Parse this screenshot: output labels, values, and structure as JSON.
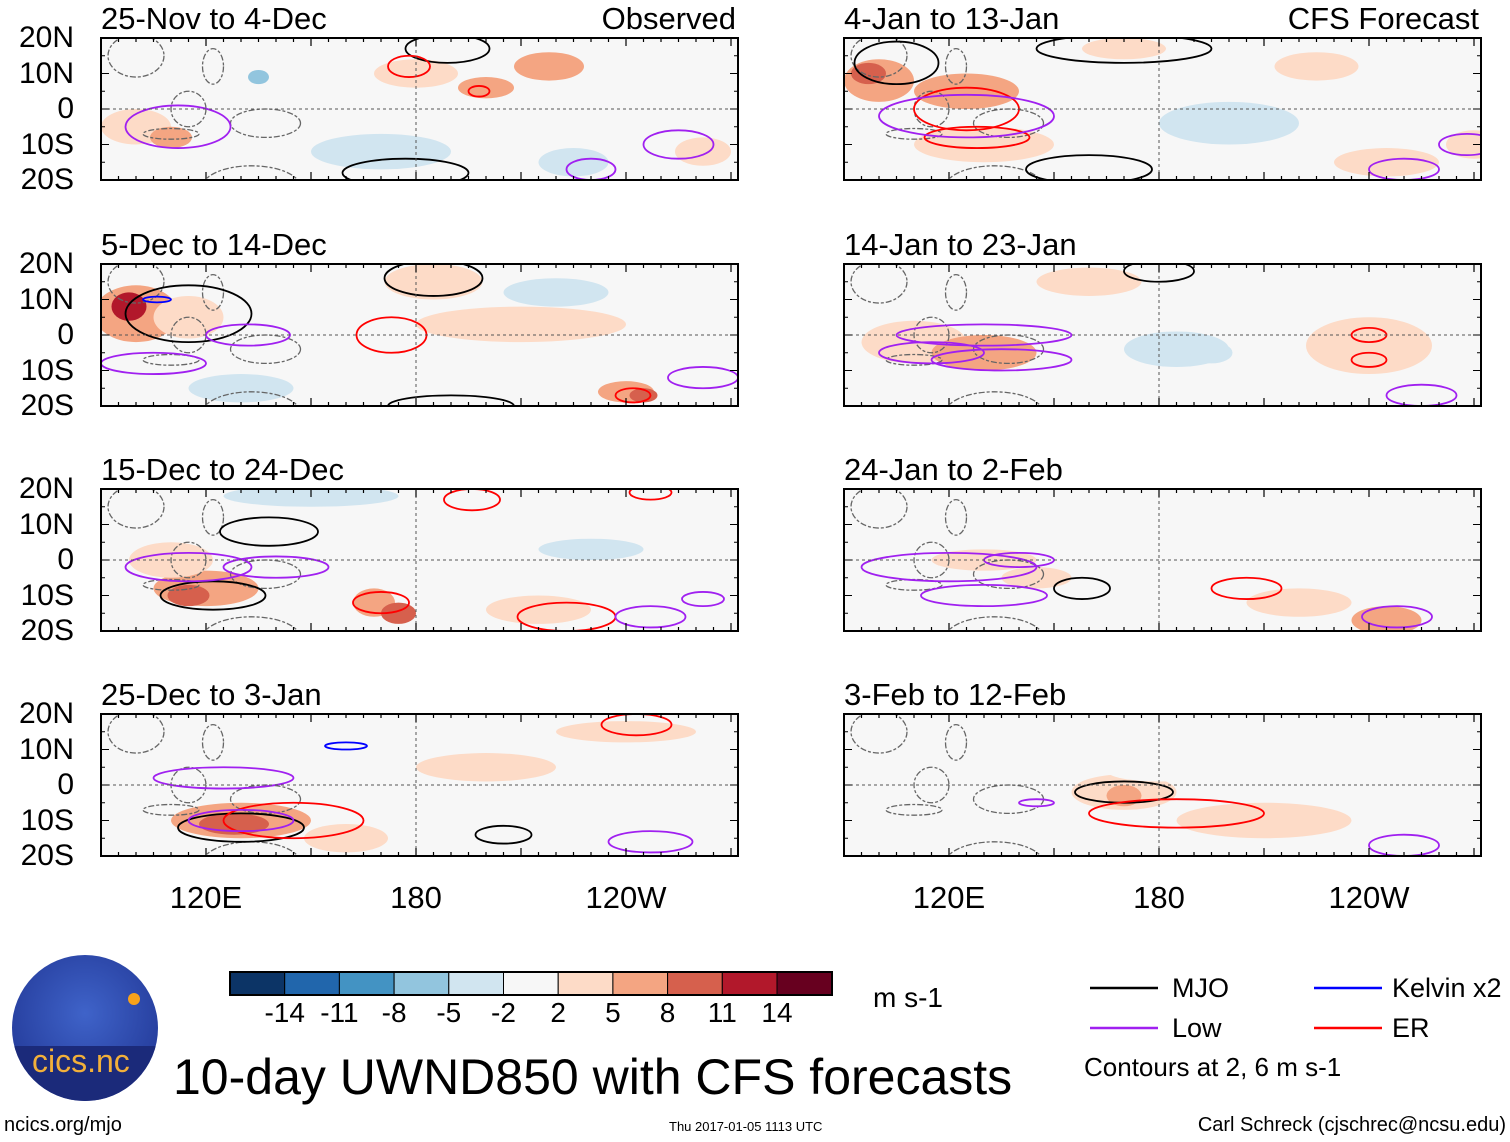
{
  "title": "10-day UWND850 with CFS forecasts",
  "observed_label": "Observed",
  "forecast_label": "CFS Forecast",
  "lat_labels": [
    "20N",
    "10N",
    "0",
    "10S",
    "20S"
  ],
  "lon_labels": [
    "120E",
    "180",
    "120W"
  ],
  "colorbar": {
    "colors": [
      "#0c3466",
      "#2166ac",
      "#4393c3",
      "#92c5de",
      "#d1e5f0",
      "#f7f7f7",
      "#fddbc7",
      "#f4a582",
      "#d6604d",
      "#b2182b",
      "#67001f"
    ],
    "labels": [
      "-14",
      "-11",
      "-8",
      "-5",
      "-2",
      "2",
      "5",
      "8",
      "11",
      "14"
    ],
    "units": "m s-1"
  },
  "legend": {
    "items": [
      {
        "label": "MJO",
        "color": "#000000"
      },
      {
        "label": "Kelvin x2",
        "color": "#0000ff"
      },
      {
        "label": "Low",
        "color": "#a020f0"
      },
      {
        "label": "ER",
        "color": "#ff0000"
      }
    ],
    "note": "Contours at 2, 6 m s-1"
  },
  "footer": {
    "left": "ncics.org/mjo",
    "center": "Thu 2017-01-05 1113 UTC",
    "right": "Carl Schreck (cjschrec@ncsu.edu)"
  },
  "logo_text": "cics.nc",
  "panels": [
    {
      "title": "25-Nov to 4-Dec",
      "blobs": [
        [
          100,
          -5,
          10,
          5,
          4
        ],
        [
          110,
          -8,
          6,
          3,
          6
        ],
        [
          180,
          10,
          12,
          4,
          3
        ],
        [
          200,
          6,
          8,
          3,
          6
        ],
        [
          218,
          12,
          10,
          4,
          6
        ],
        [
          262,
          -12,
          8,
          4,
          4
        ],
        [
          135,
          9,
          3,
          2,
          -6
        ],
        [
          170,
          -12,
          20,
          5,
          -3
        ],
        [
          225,
          -15,
          10,
          4,
          -3
        ]
      ],
      "contours": [
        [
          "mjo",
          189,
          17,
          12,
          4
        ],
        [
          "mjo",
          177,
          -18,
          18,
          4
        ],
        [
          "er",
          178,
          12,
          6,
          3
        ],
        [
          "er",
          198,
          5,
          3,
          1.5
        ],
        [
          "low",
          112,
          -5,
          15,
          6
        ],
        [
          "low",
          255,
          -10,
          10,
          4
        ],
        [
          "low",
          230,
          -17,
          7,
          3
        ]
      ]
    },
    {
      "title": "5-Dec to 14-Dec",
      "blobs": [
        [
          100,
          6,
          12,
          8,
          7
        ],
        [
          98,
          8,
          5,
          4,
          12
        ],
        [
          115,
          5,
          10,
          6,
          4
        ],
        [
          185,
          15,
          14,
          5,
          4
        ],
        [
          210,
          3,
          30,
          5,
          3
        ],
        [
          240,
          -16,
          8,
          3,
          5
        ],
        [
          245,
          -17,
          4,
          2,
          9
        ],
        [
          220,
          12,
          15,
          4,
          -3
        ],
        [
          130,
          -15,
          15,
          4,
          -3
        ]
      ],
      "contours": [
        [
          "mjo",
          115,
          6,
          18,
          8
        ],
        [
          "mjo",
          185,
          16,
          14,
          5
        ],
        [
          "mjo",
          190,
          -20,
          18,
          3
        ],
        [
          "er",
          173,
          0,
          10,
          5
        ],
        [
          "er",
          242,
          -17,
          5,
          2
        ],
        [
          "kelvin",
          106,
          10,
          4,
          0.8
        ],
        [
          "low",
          105,
          -8,
          15,
          3
        ],
        [
          "low",
          132,
          0,
          12,
          3
        ],
        [
          "low",
          262,
          -12,
          10,
          3
        ]
      ]
    },
    {
      "title": "15-Dec to 24-Dec",
      "blobs": [
        [
          120,
          -8,
          15,
          5,
          6
        ],
        [
          115,
          -10,
          6,
          3,
          10
        ],
        [
          110,
          0,
          12,
          5,
          3
        ],
        [
          168,
          -12,
          6,
          4,
          5
        ],
        [
          175,
          -15,
          5,
          3,
          9
        ],
        [
          215,
          -14,
          15,
          4,
          4
        ],
        [
          150,
          18,
          25,
          3,
          -3
        ],
        [
          230,
          3,
          15,
          3,
          -3
        ]
      ],
      "contours": [
        [
          "mjo",
          138,
          8,
          14,
          4
        ],
        [
          "mjo",
          122,
          -10,
          15,
          4
        ],
        [
          "er",
          170,
          -12,
          8,
          3
        ],
        [
          "er",
          196,
          17,
          8,
          3
        ],
        [
          "er",
          223,
          -16,
          14,
          4
        ],
        [
          "er",
          247,
          19,
          6,
          2
        ],
        [
          "low",
          115,
          -2,
          18,
          4
        ],
        [
          "low",
          140,
          -2,
          15,
          3
        ],
        [
          "low",
          247,
          -16,
          10,
          3
        ],
        [
          "low",
          262,
          -11,
          6,
          2
        ]
      ]
    },
    {
      "title": "25-Dec to 3-Jan",
      "blobs": [
        [
          130,
          -10,
          20,
          5,
          5
        ],
        [
          128,
          -11,
          10,
          3,
          8
        ],
        [
          160,
          -15,
          12,
          4,
          4
        ],
        [
          200,
          5,
          20,
          4,
          3
        ],
        [
          240,
          15,
          20,
          3,
          3
        ],
        [
          180,
          12,
          20,
          4,
          -2
        ],
        [
          240,
          -5,
          20,
          4,
          -2
        ]
      ],
      "contours": [
        [
          "mjo",
          130,
          -12,
          18,
          4
        ],
        [
          "mjo",
          205,
          -14,
          8,
          2.5
        ],
        [
          "er",
          145,
          -10,
          20,
          5
        ],
        [
          "er",
          243,
          17,
          10,
          3
        ],
        [
          "kelvin",
          160,
          11,
          6,
          1
        ],
        [
          "low",
          125,
          2,
          20,
          3
        ],
        [
          "low",
          130,
          -10,
          15,
          3
        ],
        [
          "low",
          247,
          -16,
          12,
          3
        ]
      ]
    },
    {
      "title": "4-Jan to 13-Jan",
      "blobs": [
        [
          100,
          8,
          10,
          6,
          6
        ],
        [
          97,
          10,
          5,
          3,
          9
        ],
        [
          125,
          5,
          15,
          5,
          5
        ],
        [
          130,
          -10,
          20,
          5,
          4
        ],
        [
          170,
          17,
          12,
          3,
          4
        ],
        [
          225,
          12,
          12,
          4,
          4
        ],
        [
          270,
          -10,
          8,
          4,
          4
        ],
        [
          200,
          -4,
          20,
          6,
          -3
        ],
        [
          205,
          -4,
          12,
          4,
          -5
        ],
        [
          245,
          -15,
          15,
          4,
          3
        ]
      ],
      "contours": [
        [
          "mjo",
          105,
          13,
          12,
          6
        ],
        [
          "mjo",
          170,
          17,
          25,
          4
        ],
        [
          "mjo",
          160,
          -17,
          18,
          4
        ],
        [
          "er",
          125,
          0,
          15,
          6
        ],
        [
          "er",
          128,
          -8,
          15,
          3
        ],
        [
          "low",
          125,
          -2,
          25,
          6
        ],
        [
          "low",
          250,
          -17,
          10,
          3
        ],
        [
          "low",
          268,
          -10,
          8,
          3
        ]
      ]
    },
    {
      "title": "14-Jan to 23-Jan",
      "blobs": [
        [
          110,
          -2,
          15,
          6,
          3
        ],
        [
          130,
          -5,
          15,
          5,
          5
        ],
        [
          160,
          15,
          15,
          4,
          3
        ],
        [
          240,
          -3,
          18,
          8,
          3
        ],
        [
          185,
          -4,
          15,
          5,
          -3
        ],
        [
          195,
          -5,
          6,
          3,
          -5
        ],
        [
          230,
          16,
          15,
          3,
          -2
        ]
      ],
      "contours": [
        [
          "mjo",
          180,
          18,
          10,
          3
        ],
        [
          "er",
          240,
          0,
          5,
          2
        ],
        [
          "er",
          240,
          -7,
          5,
          2
        ],
        [
          "low",
          130,
          0,
          25,
          3
        ],
        [
          "low",
          135,
          -7,
          20,
          3
        ],
        [
          "low",
          115,
          -5,
          15,
          3
        ],
        [
          "low",
          255,
          -17,
          10,
          3
        ]
      ]
    },
    {
      "title": "24-Jan to 2-Feb",
      "blobs": [
        [
          130,
          0,
          15,
          3,
          3
        ],
        [
          145,
          -5,
          10,
          3,
          3
        ],
        [
          220,
          -12,
          15,
          4,
          3
        ],
        [
          245,
          -17,
          10,
          4,
          5
        ],
        [
          190,
          5,
          20,
          3,
          -2
        ],
        [
          140,
          15,
          20,
          3,
          -2
        ]
      ],
      "contours": [
        [
          "mjo",
          158,
          -8,
          8,
          3
        ],
        [
          "er",
          205,
          -8,
          10,
          3
        ],
        [
          "low",
          120,
          -2,
          25,
          4
        ],
        [
          "low",
          130,
          -10,
          18,
          3
        ],
        [
          "low",
          140,
          0,
          10,
          2
        ],
        [
          "low",
          248,
          -16,
          10,
          3
        ]
      ]
    },
    {
      "title": "3-Feb to 12-Feb",
      "blobs": [
        [
          170,
          -2,
          15,
          5,
          3
        ],
        [
          170,
          -3,
          5,
          3,
          5
        ],
        [
          210,
          -10,
          25,
          5,
          3
        ],
        [
          180,
          4,
          15,
          3,
          -2
        ],
        [
          265,
          0,
          10,
          4,
          -2
        ]
      ],
      "contours": [
        [
          "mjo",
          170,
          -2,
          14,
          3
        ],
        [
          "er",
          185,
          -8,
          25,
          4
        ],
        [
          "low",
          145,
          -5,
          5,
          1
        ],
        [
          "low",
          250,
          -17,
          10,
          3
        ]
      ]
    }
  ]
}
